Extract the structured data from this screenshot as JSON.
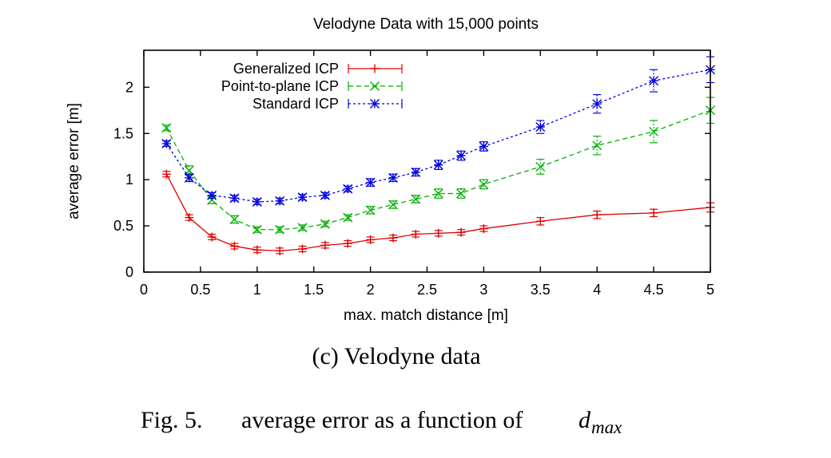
{
  "chart_data": {
    "type": "line",
    "title": "Velodyne Data with 15,000 points",
    "xlabel": "max. match distance [m]",
    "ylabel": "average error [m]",
    "xlim": [
      0,
      5
    ],
    "ylim": [
      0,
      2.4
    ],
    "xticks": [
      "0",
      "0.5",
      "1",
      "1.5",
      "2",
      "2.5",
      "3",
      "3.5",
      "4",
      "4.5",
      "5"
    ],
    "yticks": [
      "0",
      "0.5",
      "1",
      "1.5",
      "2"
    ],
    "grid": false,
    "legend_position": "top-left",
    "x": [
      0.2,
      0.4,
      0.6,
      0.8,
      1.0,
      1.2,
      1.4,
      1.6,
      1.8,
      2.0,
      2.2,
      2.4,
      2.6,
      2.8,
      3.0,
      3.5,
      4.0,
      4.5,
      5.0
    ],
    "series": [
      {
        "name": "Generalized ICP",
        "color": "#e00000",
        "dash": "solid",
        "marker": "plus",
        "values": [
          1.06,
          0.59,
          0.38,
          0.28,
          0.24,
          0.23,
          0.25,
          0.29,
          0.31,
          0.35,
          0.37,
          0.41,
          0.42,
          0.43,
          0.47,
          0.55,
          0.62,
          0.64,
          0.7
        ],
        "errors": [
          0.03,
          0.03,
          0.03,
          0.03,
          0.03,
          0.03,
          0.03,
          0.03,
          0.03,
          0.03,
          0.03,
          0.03,
          0.03,
          0.03,
          0.03,
          0.04,
          0.04,
          0.04,
          0.05
        ]
      },
      {
        "name": "Point-to-plane ICP",
        "color": "#00b000",
        "dash": "dashed",
        "marker": "cross",
        "values": [
          1.56,
          1.1,
          0.78,
          0.57,
          0.46,
          0.46,
          0.48,
          0.52,
          0.59,
          0.67,
          0.73,
          0.79,
          0.85,
          0.85,
          0.95,
          1.14,
          1.37,
          1.52,
          1.75
        ],
        "errors": [
          0.03,
          0.05,
          0.04,
          0.04,
          0.03,
          0.03,
          0.03,
          0.03,
          0.03,
          0.04,
          0.04,
          0.04,
          0.05,
          0.05,
          0.05,
          0.08,
          0.1,
          0.12,
          0.14
        ]
      },
      {
        "name": "Standard ICP",
        "color": "#0000e0",
        "dash": "dotted",
        "marker": "star",
        "values": [
          1.39,
          1.02,
          0.83,
          0.8,
          0.76,
          0.77,
          0.81,
          0.83,
          0.9,
          0.97,
          1.02,
          1.08,
          1.16,
          1.26,
          1.36,
          1.57,
          1.82,
          2.07,
          2.19
        ],
        "errors": [
          0.03,
          0.04,
          0.03,
          0.03,
          0.03,
          0.03,
          0.03,
          0.03,
          0.03,
          0.04,
          0.04,
          0.04,
          0.05,
          0.05,
          0.05,
          0.07,
          0.1,
          0.12,
          0.14
        ]
      }
    ]
  },
  "subcaption": "(c) Velodyne data",
  "caption": {
    "label": "Fig. 5.",
    "text": "average error as a function of",
    "symbol": "d",
    "subscript": "max"
  }
}
